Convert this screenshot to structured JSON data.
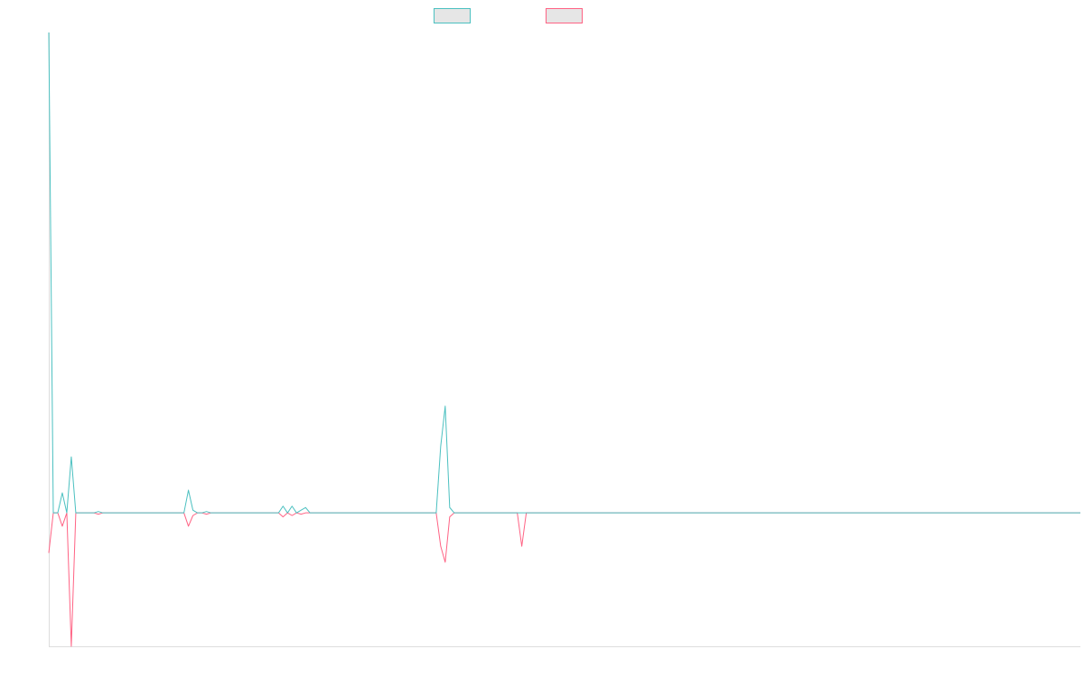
{
  "chart_data": {
    "type": "line",
    "title": "",
    "xlabel": "",
    "ylabel": "",
    "grid": false,
    "legend_placement": "top-center",
    "x_count": 230,
    "ylim": [
      -1.0,
      3.6
    ],
    "colors": {
      "series_a": "#4bc0c0",
      "series_b": "#ff6384",
      "axis": "#dddddd",
      "legend_fill": "#e6e6e6"
    },
    "series": [
      {
        "name": "",
        "color": "#4bc0c0",
        "points": [
          [
            0,
            3.6
          ],
          [
            1,
            0
          ],
          [
            2,
            0
          ],
          [
            3,
            0.15
          ],
          [
            4,
            0
          ],
          [
            5,
            0.42
          ],
          [
            6,
            0
          ],
          [
            10,
            0
          ],
          [
            11,
            0.01
          ],
          [
            12,
            0
          ],
          [
            30,
            0
          ],
          [
            31,
            0.17
          ],
          [
            32,
            0.02
          ],
          [
            33,
            0
          ],
          [
            34,
            0
          ],
          [
            35,
            0.01
          ],
          [
            36,
            0
          ],
          [
            51,
            0
          ],
          [
            52,
            0.05
          ],
          [
            53,
            0
          ],
          [
            54,
            0.05
          ],
          [
            55,
            0
          ],
          [
            56,
            0.02
          ],
          [
            57,
            0.04
          ],
          [
            58,
            0
          ],
          [
            86,
            0
          ],
          [
            87,
            0.5
          ],
          [
            88,
            0.8
          ],
          [
            89,
            0.04
          ],
          [
            90,
            0
          ],
          [
            229,
            0
          ]
        ]
      },
      {
        "name": "",
        "color": "#ff6384",
        "points": [
          [
            0,
            -0.3
          ],
          [
            1,
            0
          ],
          [
            2,
            0
          ],
          [
            3,
            -0.1
          ],
          [
            4,
            0
          ],
          [
            5,
            -1.0
          ],
          [
            6,
            0
          ],
          [
            10,
            0
          ],
          [
            11,
            -0.01
          ],
          [
            12,
            0
          ],
          [
            30,
            0
          ],
          [
            31,
            -0.1
          ],
          [
            32,
            -0.02
          ],
          [
            33,
            0
          ],
          [
            34,
            0
          ],
          [
            35,
            -0.01
          ],
          [
            36,
            0
          ],
          [
            51,
            0
          ],
          [
            52,
            -0.03
          ],
          [
            53,
            0
          ],
          [
            54,
            -0.02
          ],
          [
            55,
            0
          ],
          [
            56,
            -0.01
          ],
          [
            57,
            0
          ],
          [
            86,
            0
          ],
          [
            87,
            -0.25
          ],
          [
            88,
            -0.37
          ],
          [
            89,
            -0.03
          ],
          [
            90,
            0
          ],
          [
            104,
            0
          ],
          [
            105,
            -0.25
          ],
          [
            106,
            0
          ],
          [
            229,
            0
          ]
        ]
      }
    ]
  }
}
